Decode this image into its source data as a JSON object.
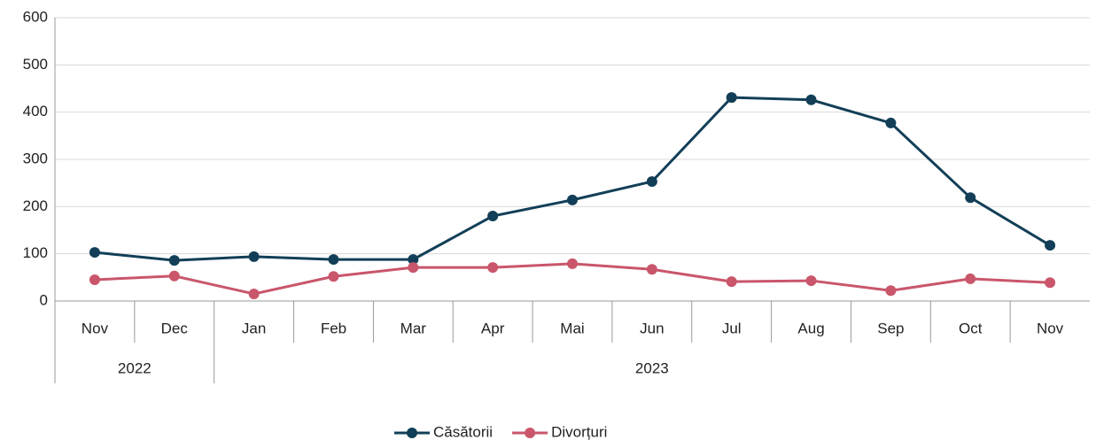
{
  "chart_data": {
    "type": "line",
    "groups": [
      {
        "name": "2022",
        "categories": [
          "Nov",
          "Dec"
        ]
      },
      {
        "name": "2023",
        "categories": [
          "Jan",
          "Feb",
          "Mar",
          "Apr",
          "Mai",
          "Jun",
          "Jul",
          "Aug",
          "Sep",
          "Oct",
          "Nov"
        ]
      }
    ],
    "series": [
      {
        "name": "Căsătorii",
        "color": "#123f57",
        "values": [
          103,
          86,
          94,
          88,
          88,
          180,
          214,
          253,
          431,
          426,
          377,
          219,
          118
        ]
      },
      {
        "name": "Divorțuri",
        "color": "#c9566a",
        "values": [
          45,
          53,
          15,
          52,
          71,
          71,
          79,
          67,
          41,
          43,
          22,
          47,
          39
        ]
      }
    ],
    "ylim": [
      0,
      600
    ],
    "yticks": [
      0,
      100,
      200,
      300,
      400,
      500,
      600
    ],
    "grid": true,
    "legend": "bottom"
  }
}
